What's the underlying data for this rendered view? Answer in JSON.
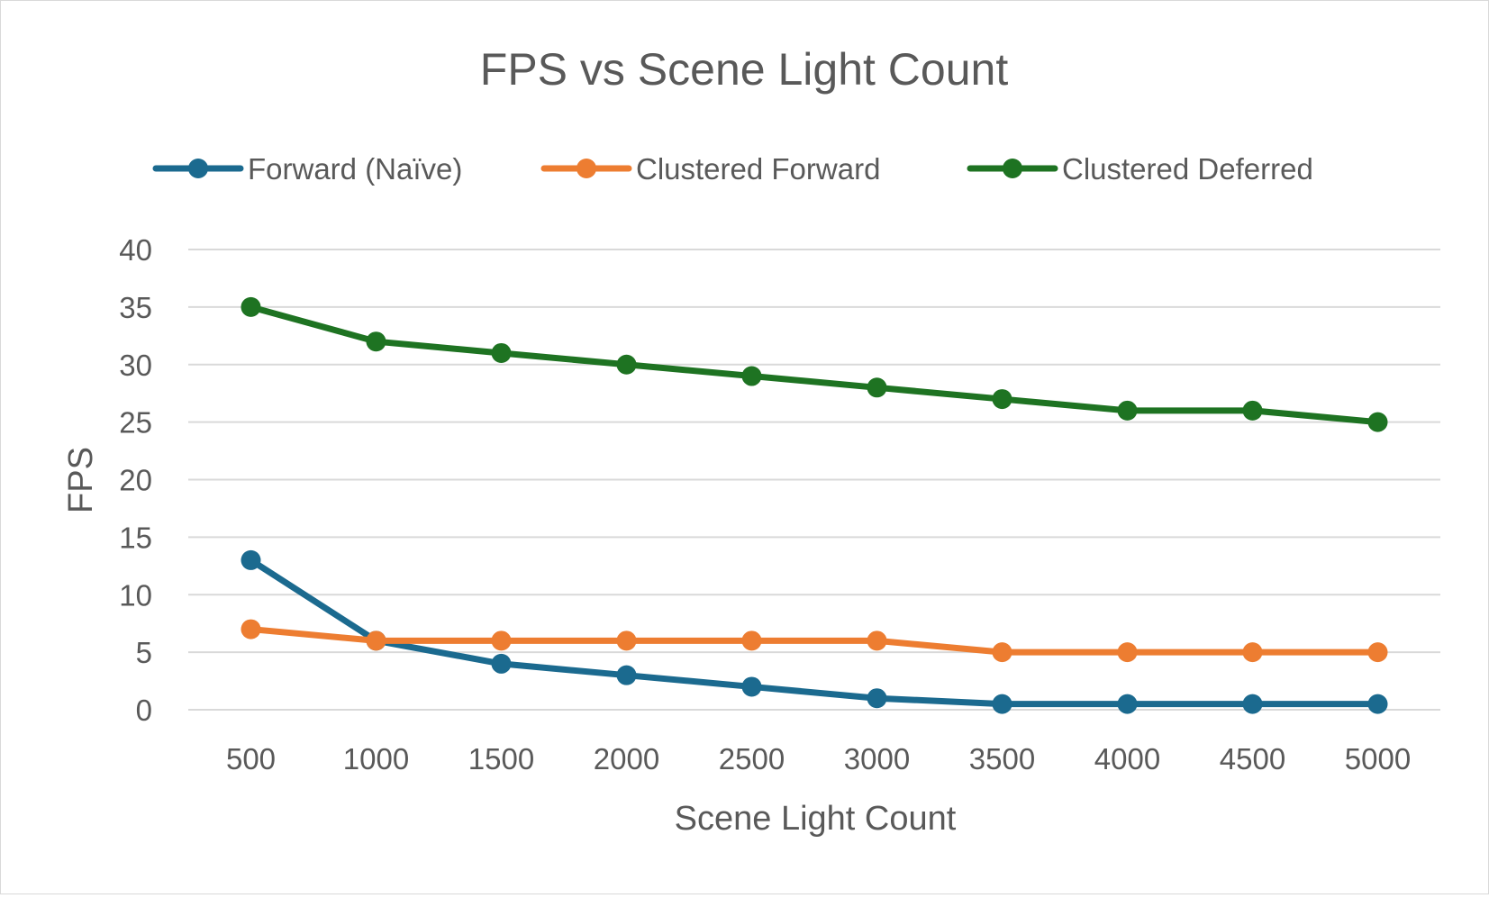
{
  "chart_data": {
    "type": "line",
    "title": "FPS vs Scene Light Count",
    "xlabel": "Scene Light Count",
    "ylabel": "FPS",
    "categories": [
      "500",
      "1000",
      "1500",
      "2000",
      "2500",
      "3000",
      "3500",
      "4000",
      "4500",
      "5000"
    ],
    "ylim": [
      0,
      40
    ],
    "yticks": [
      "0",
      "5",
      "10",
      "15",
      "20",
      "25",
      "30",
      "35",
      "40"
    ],
    "grid": true,
    "legend_position": "top",
    "series": [
      {
        "name": "Forward (Naïve)",
        "color": "#1b6a8f",
        "values": [
          13,
          6,
          4,
          3,
          2,
          1,
          0.5,
          0.5,
          0.5,
          0.5
        ]
      },
      {
        "name": "Clustered Forward",
        "color": "#ed7d31",
        "values": [
          7,
          6,
          6,
          6,
          6,
          6,
          5,
          5,
          5,
          5
        ]
      },
      {
        "name": "Clustered Deferred",
        "color": "#1e7322",
        "values": [
          35,
          32,
          31,
          30,
          29,
          28,
          27,
          26,
          26,
          25
        ]
      }
    ]
  }
}
